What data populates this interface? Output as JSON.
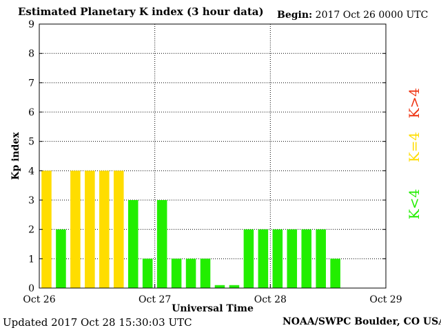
{
  "header": {
    "title": "Estimated Planetary K index (3 hour data)",
    "begin_label": "Begin:",
    "begin_value": "2017 Oct 26 0000 UTC"
  },
  "footer": {
    "updated": "Updated 2017 Oct 28 15:30:03 UTC",
    "source": "NOAA/SWPC Boulder, CO USA"
  },
  "colors": {
    "green": "#22ee00",
    "yellow": "#ffdd00",
    "red": "#ee3311",
    "grid": "#000000"
  },
  "chart_data": {
    "type": "bar",
    "xlabel": "Universal Time",
    "ylabel": "Kp index",
    "ylim": [
      0,
      9
    ],
    "yticks": [
      "0",
      "1",
      "2",
      "3",
      "4",
      "5",
      "6",
      "7",
      "8",
      "9"
    ],
    "xticks": [
      "Oct 26",
      "Oct 27",
      "Oct 28",
      "Oct 29"
    ],
    "grid": true,
    "bars_per_day": 8,
    "days": 3,
    "values": [
      4,
      2,
      4,
      4,
      4,
      4,
      3,
      1,
      3,
      1,
      1,
      1,
      0.1,
      0.1,
      2,
      2,
      2,
      2,
      2,
      2,
      1
    ],
    "legend": [
      {
        "label": "K<4",
        "color": "#22ee00"
      },
      {
        "label": "K=4",
        "color": "#ffdd00"
      },
      {
        "label": "K>4",
        "color": "#ee3311"
      }
    ],
    "legend_placement": "right"
  }
}
